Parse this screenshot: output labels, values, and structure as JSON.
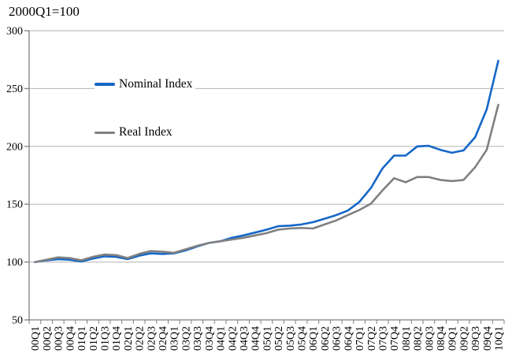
{
  "chart_data": {
    "type": "line",
    "title": "2000Q1=100",
    "xlabel": "",
    "ylabel": "",
    "ylim": [
      50,
      300
    ],
    "yticks": [
      50,
      100,
      150,
      200,
      250,
      300
    ],
    "ytick_labels": [
      "50",
      "100",
      "150",
      "200",
      "250",
      "300"
    ],
    "grid": "horizontal",
    "legend_position": "inside-upper-left",
    "categories": [
      "00Q1",
      "00Q2",
      "00Q3",
      "00Q4",
      "01Q1",
      "01Q2",
      "01Q3",
      "01Q4",
      "02Q1",
      "02Q2",
      "02Q3",
      "02Q4",
      "03Q1",
      "03Q2",
      "03Q3",
      "03Q4",
      "04Q1",
      "04Q2",
      "04Q3",
      "04Q4",
      "05Q1",
      "05Q2",
      "05Q3",
      "05Q4",
      "06Q1",
      "06Q2",
      "06Q3",
      "06Q4",
      "07Q1",
      "07Q2",
      "07Q3",
      "07Q4",
      "08Q1",
      "08Q2",
      "08Q3",
      "08Q4",
      "09Q1",
      "09Q2",
      "09Q3",
      "09Q4",
      "10Q1"
    ],
    "series": [
      {
        "name": "Nominal Index",
        "color": "#1467c8",
        "values": [
          100,
          101.5,
          102.5,
          102,
          100.5,
          103,
          105,
          104.5,
          102.5,
          105.5,
          107.5,
          107,
          107.5,
          110,
          113.5,
          116.5,
          118,
          121,
          123,
          125.5,
          128,
          131,
          131.5,
          132.5,
          134.5,
          137.5,
          140.5,
          144.5,
          152,
          164,
          181,
          192,
          192,
          200,
          200.5,
          197,
          194.5,
          196.5,
          208,
          232,
          274
        ]
      },
      {
        "name": "Real Index",
        "color": "#808080",
        "values": [
          100,
          102,
          104,
          103.5,
          101.5,
          104.5,
          106.5,
          106,
          103.5,
          107,
          109.5,
          109,
          108,
          111,
          114,
          116.5,
          118,
          119.5,
          121,
          123,
          125,
          128,
          129,
          129.5,
          129,
          132.5,
          136,
          140.5,
          145,
          150.5,
          162,
          172.5,
          169,
          173.5,
          173.5,
          171,
          170,
          171,
          182,
          197,
          236
        ]
      }
    ],
    "colors": {
      "axis": "#7f7f7f",
      "gridline": "#b3b3b3",
      "tick_text": "#000000"
    }
  }
}
